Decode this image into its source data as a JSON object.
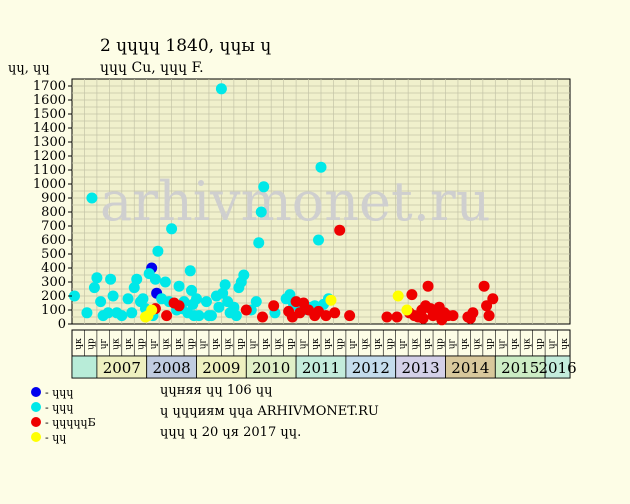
{
  "header": {
    "title": "2 ɥɥɥɥ 1840, ɥɥы ɥ",
    "subtitle": "ɥɥɥ Cu, ɥɥɥ F."
  },
  "watermark": "arhivmonet.ru",
  "legend": [
    {
      "label": "- ɥɥɥ",
      "color": "#0000ee"
    },
    {
      "label": "- ɥɥɥ",
      "color": "#00e8e8"
    },
    {
      "label": "- ɥɥɥɥɥБ",
      "color": "#ee0000"
    },
    {
      "label": "- ɥɥ",
      "color": "#ffff00"
    }
  ],
  "notes": [
    "ɥɥняя ɥɥ 106 ɥɥ",
    "ɥ ɥɥɥиям ɥɥа ARHIVMONET.RU",
    "ɥɥɥ ɥ 20 ɥя 2017 ɥɥ."
  ],
  "chart_data": {
    "type": "scatter",
    "title": "2 ɥɥɥɥ 1840, ɥɥы ɥ",
    "subtitle": "ɥɥɥ Cu, ɥɥɥ F.",
    "ylabel": "ɥɥ, ɥɥ",
    "ylim": [
      0,
      1750
    ],
    "yticks": [
      0,
      100,
      200,
      300,
      400,
      500,
      600,
      700,
      800,
      900,
      1000,
      1100,
      1200,
      1300,
      1400,
      1500,
      1600,
      1700
    ],
    "xlim": [
      0,
      40
    ],
    "grid": true,
    "legend_position": "bottom-left",
    "quarter_labels": [
      "ɥк",
      "ɥр",
      "ɥг",
      "ɥк"
    ],
    "years": [
      {
        "label": "",
        "color": "#b8ecd8"
      },
      {
        "label": "2007",
        "color": "#eef0c0"
      },
      {
        "label": "2008",
        "color": "#c0cce0"
      },
      {
        "label": "2009",
        "color": "#eef0c0"
      },
      {
        "label": "2010",
        "color": "#e0f0c8"
      },
      {
        "label": "2011",
        "color": "#c4ecdc"
      },
      {
        "label": "2012",
        "color": "#c4dcec"
      },
      {
        "label": "2013",
        "color": "#d4d0e8"
      },
      {
        "label": "2014",
        "color": "#d8c89c"
      },
      {
        "label": "2015",
        "color": "#ccecc4"
      },
      {
        "label": "2016",
        "color": "#c4ecdc"
      }
    ],
    "series": [
      {
        "color": "#0000ee",
        "points": [
          [
            6.4,
            400
          ],
          [
            6.8,
            220
          ]
        ]
      },
      {
        "color": "#00e8e8",
        "points": [
          [
            0.2,
            200
          ],
          [
            1.2,
            80
          ],
          [
            1.6,
            900
          ],
          [
            1.8,
            260
          ],
          [
            2.0,
            330
          ],
          [
            2.3,
            160
          ],
          [
            2.5,
            60
          ],
          [
            2.9,
            80
          ],
          [
            3.1,
            320
          ],
          [
            3.3,
            200
          ],
          [
            3.6,
            80
          ],
          [
            4.0,
            60
          ],
          [
            4.5,
            180
          ],
          [
            4.8,
            80
          ],
          [
            5.0,
            260
          ],
          [
            5.2,
            320
          ],
          [
            5.5,
            160
          ],
          [
            5.7,
            180
          ],
          [
            5.9,
            110
          ],
          [
            6.2,
            360
          ],
          [
            6.5,
            60
          ],
          [
            6.7,
            320
          ],
          [
            6.9,
            520
          ],
          [
            7.2,
            180
          ],
          [
            7.5,
            300
          ],
          [
            7.8,
            160
          ],
          [
            8.0,
            680
          ],
          [
            8.4,
            100
          ],
          [
            8.6,
            270
          ],
          [
            8.8,
            110
          ],
          [
            9.0,
            160
          ],
          [
            9.3,
            80
          ],
          [
            9.5,
            380
          ],
          [
            9.6,
            240
          ],
          [
            9.7,
            140
          ],
          [
            9.8,
            60
          ],
          [
            10.0,
            180
          ],
          [
            10.2,
            60
          ],
          [
            10.8,
            160
          ],
          [
            11.0,
            60
          ],
          [
            11.2,
            60
          ],
          [
            11.6,
            200
          ],
          [
            11.8,
            120
          ],
          [
            12.0,
            1680
          ],
          [
            12.1,
            220
          ],
          [
            12.3,
            280
          ],
          [
            12.5,
            160
          ],
          [
            12.7,
            80
          ],
          [
            13.0,
            120
          ],
          [
            13.2,
            60
          ],
          [
            13.4,
            260
          ],
          [
            13.6,
            300
          ],
          [
            13.8,
            350
          ],
          [
            14.4,
            100
          ],
          [
            14.8,
            160
          ],
          [
            15.0,
            580
          ],
          [
            15.2,
            800
          ],
          [
            15.4,
            980
          ],
          [
            16.3,
            80
          ],
          [
            17.2,
            180
          ],
          [
            17.5,
            210
          ],
          [
            17.8,
            140
          ],
          [
            18.2,
            120
          ],
          [
            18.6,
            100
          ],
          [
            18.9,
            110
          ],
          [
            19.2,
            120
          ],
          [
            19.5,
            130
          ],
          [
            19.8,
            600
          ],
          [
            20.0,
            1120
          ],
          [
            20.2,
            140
          ],
          [
            20.6,
            180
          ]
        ]
      },
      {
        "color": "#ee0000",
        "points": [
          [
            6.7,
            110
          ],
          [
            7.6,
            60
          ],
          [
            8.2,
            150
          ],
          [
            8.6,
            130
          ],
          [
            14.0,
            100
          ],
          [
            15.3,
            50
          ],
          [
            16.2,
            130
          ],
          [
            17.4,
            90
          ],
          [
            17.7,
            50
          ],
          [
            18.0,
            160
          ],
          [
            18.3,
            80
          ],
          [
            18.6,
            150
          ],
          [
            19.0,
            100
          ],
          [
            19.5,
            60
          ],
          [
            19.8,
            90
          ],
          [
            20.4,
            60
          ],
          [
            21.1,
            80
          ],
          [
            21.5,
            670
          ],
          [
            22.3,
            60
          ],
          [
            25.3,
            50
          ],
          [
            26.1,
            50
          ],
          [
            27.1,
            80
          ],
          [
            27.3,
            210
          ],
          [
            27.5,
            60
          ],
          [
            27.8,
            50
          ],
          [
            28.1,
            100
          ],
          [
            28.4,
            130
          ],
          [
            28.6,
            270
          ],
          [
            28.8,
            110
          ],
          [
            29.0,
            60
          ],
          [
            29.2,
            80
          ],
          [
            29.5,
            120
          ],
          [
            29.9,
            80
          ],
          [
            30.2,
            60
          ],
          [
            30.6,
            60
          ],
          [
            31.8,
            50
          ],
          [
            32.2,
            80
          ],
          [
            33.1,
            270
          ],
          [
            33.3,
            130
          ],
          [
            33.5,
            60
          ],
          [
            33.8,
            180
          ],
          [
            32.0,
            40
          ],
          [
            29.7,
            30
          ],
          [
            28.2,
            40
          ]
        ]
      },
      {
        "color": "#ffff00",
        "points": [
          [
            5.9,
            50
          ],
          [
            6.1,
            60
          ],
          [
            6.4,
            100
          ],
          [
            20.8,
            170
          ],
          [
            26.2,
            200
          ],
          [
            26.9,
            100
          ]
        ]
      }
    ]
  }
}
